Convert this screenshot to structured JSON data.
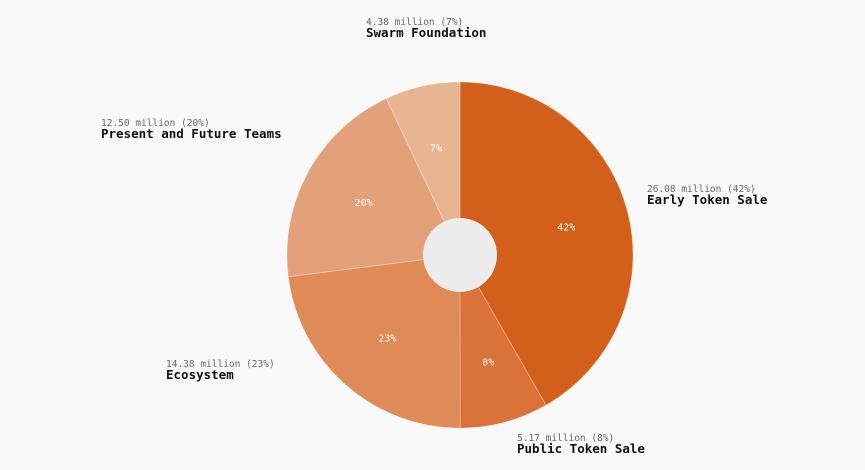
{
  "chart_data": {
    "type": "pie",
    "donut": true,
    "center_color": "#ececec",
    "slices": [
      {
        "name": "Early Token Sale",
        "value_label": "26.08 million (42%)",
        "value": 26.08,
        "pct_label": "42%",
        "color": "#d2601a"
      },
      {
        "name": "Public Token Sale",
        "value_label": "5.17 million (8%)",
        "value": 5.17,
        "pct_label": "8%",
        "color": "#da7239"
      },
      {
        "name": "Ecosystem",
        "value_label": "14.38 million (23%)",
        "value": 14.38,
        "pct_label": "23%",
        "color": "#df8a57"
      },
      {
        "name": "Present and Future Teams",
        "value_label": "12.50 million (20%)",
        "value": 12.5,
        "pct_label": "20%",
        "color": "#e3a17a"
      },
      {
        "name": "Swarm Foundation",
        "value_label": "4.38 million (7%)",
        "value": 4.38,
        "pct_label": "7%",
        "color": "#e8b593"
      }
    ]
  }
}
